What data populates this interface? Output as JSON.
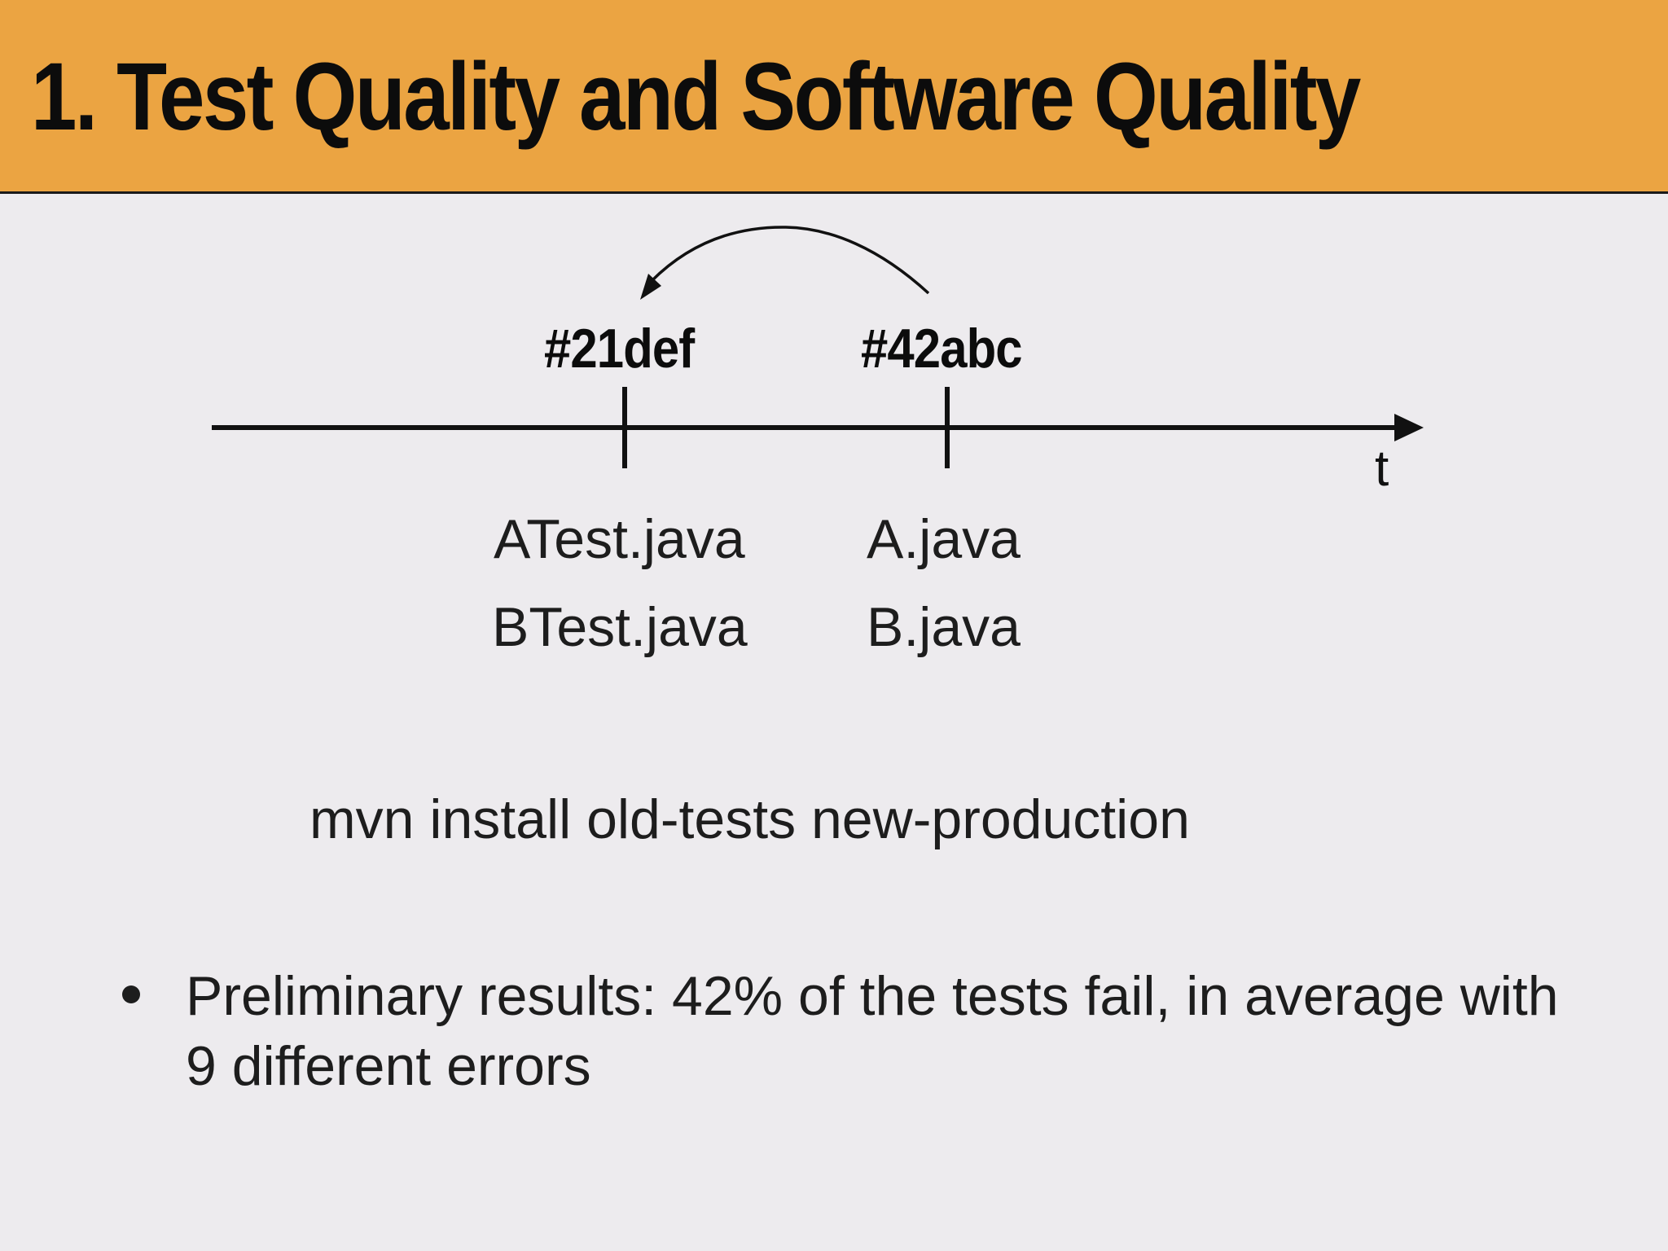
{
  "slide": {
    "title": "1. Test Quality and Software Quality",
    "header_color": "#eba442",
    "background_color": "#edebee"
  },
  "timeline": {
    "axis_label": "t",
    "commits": [
      {
        "label": "#21def",
        "files": [
          "ATest.java",
          "BTest.java"
        ]
      },
      {
        "label": "#42abc",
        "files": [
          "A.java",
          "B.java"
        ]
      }
    ],
    "arrow": {
      "from": "#42abc",
      "to": "#21def"
    }
  },
  "command": "mvn install old-tests new-production",
  "bullets": [
    "Preliminary results: 42% of the tests fail, in average with 9 different errors"
  ]
}
